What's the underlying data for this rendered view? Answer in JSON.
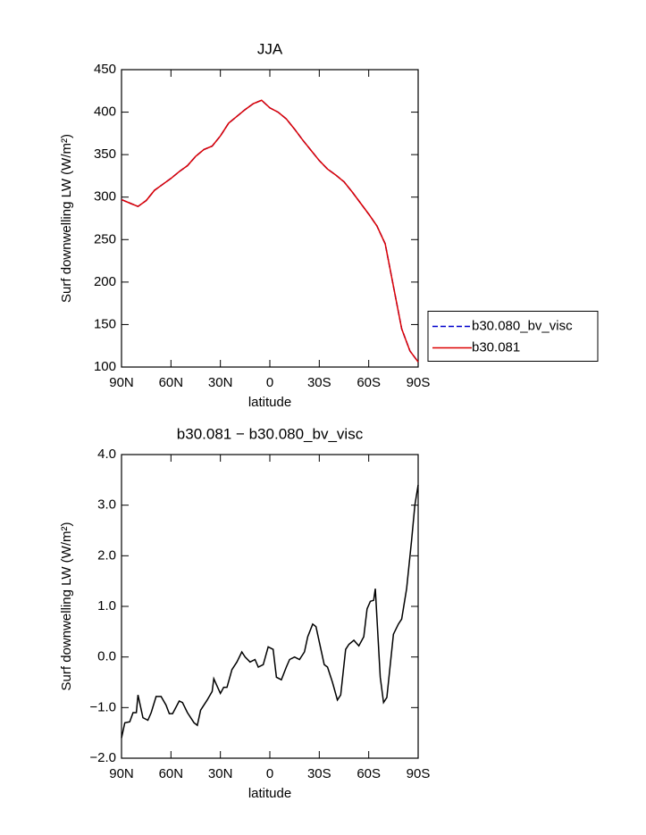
{
  "chart_data": [
    {
      "type": "line",
      "title": "JJA",
      "xlabel": "latitude",
      "ylabel": "Surf downwelling LW (W/m²)",
      "x": [
        90,
        85,
        80,
        75,
        70,
        65,
        60,
        55,
        50,
        45,
        40,
        35,
        30,
        25,
        20,
        15,
        10,
        5,
        0,
        -5,
        -10,
        -15,
        -20,
        -25,
        -30,
        -35,
        -40,
        -45,
        -50,
        -55,
        -60,
        -65,
        -70,
        -75,
        -80,
        -85,
        -90
      ],
      "series": [
        {
          "name": "b30.080_bv_visc",
          "color": "#0000cc",
          "dashed": true,
          "values": [
            297,
            293,
            289,
            296,
            308,
            315,
            322,
            330,
            337,
            348,
            356,
            360,
            372,
            387,
            395,
            403,
            410,
            414,
            405,
            400,
            392,
            380,
            367,
            355,
            343,
            333,
            326,
            318,
            306,
            293,
            280,
            266,
            245,
            195,
            145,
            119,
            106
          ]
        },
        {
          "name": "b30.081",
          "color": "#dd0000",
          "dashed": false,
          "values": [
            297,
            293,
            289,
            296,
            308,
            315,
            322,
            330,
            337,
            348,
            356,
            360,
            372,
            387,
            395,
            403,
            410,
            414,
            405,
            400,
            392,
            380,
            367,
            355,
            343,
            333,
            326,
            318,
            306,
            293,
            280,
            266,
            245,
            195,
            145,
            119,
            106
          ]
        }
      ],
      "xlim": [
        90,
        -90
      ],
      "xticks": [
        {
          "value": 90,
          "label": "90N"
        },
        {
          "value": 60,
          "label": "60N"
        },
        {
          "value": 30,
          "label": "30N"
        },
        0,
        {
          "value": -30,
          "label": "30S"
        },
        {
          "value": -60,
          "label": "60S"
        },
        {
          "value": -90,
          "label": "90S"
        }
      ],
      "ylim": [
        100,
        450
      ],
      "yticks": [
        100,
        150,
        200,
        250,
        300,
        350,
        400,
        450
      ],
      "legend": "right"
    },
    {
      "type": "line",
      "title": "b30.081 − b30.080_bv_visc",
      "xlabel": "latitude",
      "ylabel": "Surf downwelling LW (W/m²)",
      "x": [
        90,
        88,
        85,
        83,
        81,
        80,
        77,
        74,
        72,
        69,
        66,
        63,
        61,
        59,
        55,
        53,
        50,
        46,
        44,
        42,
        38,
        35,
        34,
        30,
        28,
        26,
        23,
        20,
        17,
        15,
        12,
        9,
        7,
        4,
        1,
        -2,
        -4,
        -7,
        -10,
        -12,
        -15,
        -18,
        -21,
        -23,
        -26,
        -28,
        -30,
        -33,
        -35,
        -38,
        -41,
        -43,
        -46,
        -48,
        -51,
        -54,
        -57,
        -59,
        -61,
        -63,
        -64,
        -67,
        -69,
        -71,
        -75,
        -78,
        -80,
        -83,
        -86,
        -88,
        -90
      ],
      "series": [
        {
          "color": "#000000",
          "dashed": false,
          "values": [
            -1.6,
            -1.3,
            -1.28,
            -1.1,
            -1.1,
            -0.75,
            -1.2,
            -1.25,
            -1.1,
            -0.78,
            -0.78,
            -0.95,
            -1.12,
            -1.12,
            -0.87,
            -0.9,
            -1.1,
            -1.3,
            -1.35,
            -1.05,
            -0.85,
            -0.68,
            -0.43,
            -0.72,
            -0.6,
            -0.6,
            -0.25,
            -0.1,
            0.1,
            0.0,
            -0.1,
            -0.05,
            -0.2,
            -0.15,
            0.2,
            0.15,
            -0.4,
            -0.45,
            -0.2,
            -0.05,
            0.0,
            -0.05,
            0.1,
            0.4,
            0.65,
            0.6,
            0.3,
            -0.15,
            -0.2,
            -0.5,
            -0.85,
            -0.75,
            0.15,
            0.25,
            0.33,
            0.22,
            0.4,
            0.95,
            1.1,
            1.12,
            1.35,
            -0.4,
            -0.9,
            -0.8,
            0.45,
            0.65,
            0.75,
            1.35,
            2.3,
            3.0,
            3.4
          ]
        }
      ],
      "xlim": [
        90,
        -90
      ],
      "xticks": [
        {
          "value": 90,
          "label": "90N"
        },
        {
          "value": 60,
          "label": "60N"
        },
        {
          "value": 30,
          "label": "30N"
        },
        0,
        {
          "value": -30,
          "label": "30S"
        },
        {
          "value": -60,
          "label": "60S"
        },
        {
          "value": -90,
          "label": "90S"
        }
      ],
      "ylim": [
        -2,
        4
      ],
      "yticks": [
        {
          "value": -2,
          "label": "−2.0"
        },
        {
          "value": -1,
          "label": "−1.0"
        },
        {
          "value": 0,
          "label": "0.0"
        },
        {
          "value": 1,
          "label": "1.0"
        },
        {
          "value": 2,
          "label": "2.0"
        },
        {
          "value": 3,
          "label": "3.0"
        },
        {
          "value": 4,
          "label": "4.0"
        }
      ]
    }
  ]
}
